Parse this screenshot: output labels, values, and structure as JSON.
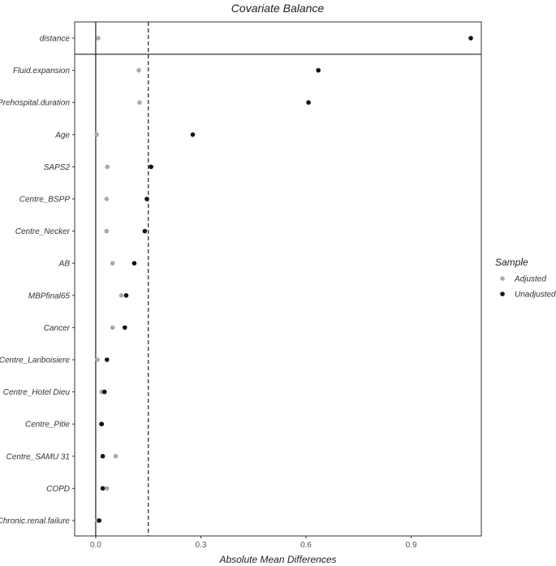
{
  "chart_data": {
    "type": "scatter",
    "title": "Covariate Balance",
    "xlabel": "Absolute Mean Differences",
    "ylabel": "",
    "xlim": [
      -0.06,
      1.1
    ],
    "xticks": [
      "0.0",
      "0.3",
      "0.6",
      "0.9"
    ],
    "xtick_values": [
      0.0,
      0.3,
      0.6,
      0.9
    ],
    "threshold": 0.15,
    "grid": false,
    "legend_position": "right",
    "legend_title": "Sample",
    "categories": [
      "distance",
      "Fluid.expansion",
      "Prehospital.duration",
      "Age",
      "SAPS2",
      "Centre_BSPP",
      "Centre_Necker",
      "AB",
      "MBPfinal65",
      "Cancer",
      "Centre_Lariboisiere",
      "Centre_Hotel Dieu",
      "Centre_Pitie",
      "Centre_SAMU 31",
      "COPD",
      "Chronic.renal.failure"
    ],
    "series": [
      {
        "name": "Adjusted",
        "color": "#aaaaaa",
        "values": [
          0.007,
          0.123,
          0.125,
          0.003,
          0.033,
          0.031,
          0.031,
          0.048,
          0.073,
          0.048,
          0.005,
          0.017,
          0.015,
          0.057,
          0.032,
          0.005
        ]
      },
      {
        "name": "Unadjusted",
        "color": "#111111",
        "values": [
          1.07,
          0.635,
          0.607,
          0.277,
          0.158,
          0.146,
          0.14,
          0.11,
          0.087,
          0.083,
          0.032,
          0.025,
          0.017,
          0.02,
          0.02,
          0.01
        ]
      }
    ]
  }
}
